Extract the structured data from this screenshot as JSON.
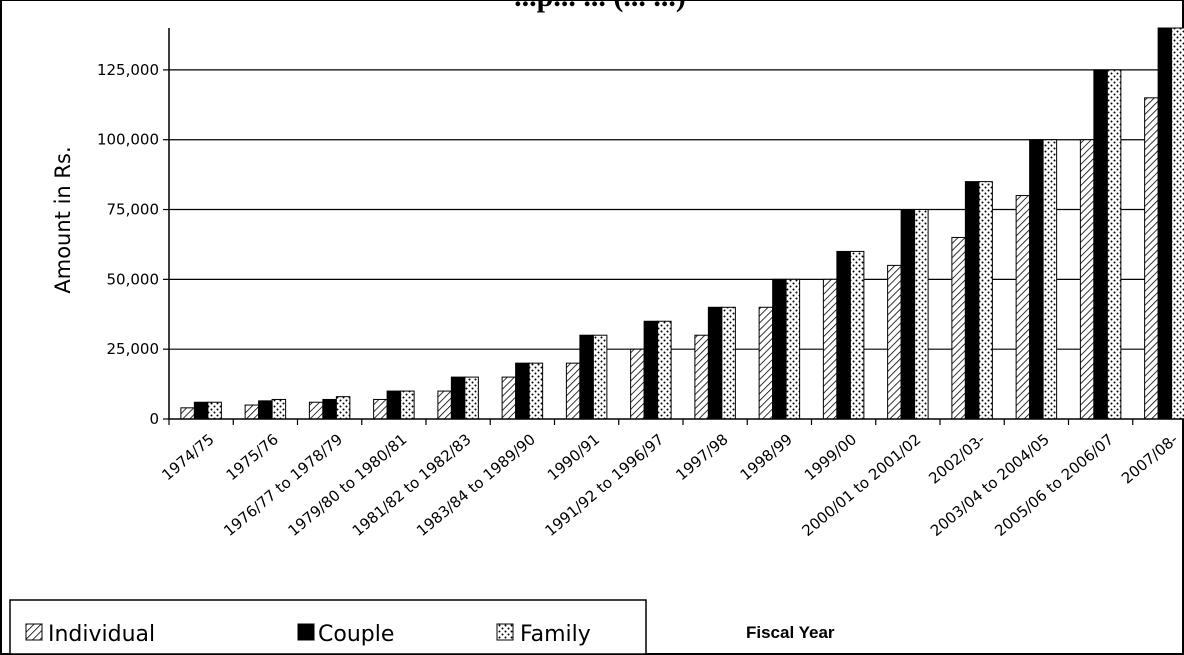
{
  "chart_data": {
    "type": "bar",
    "title": "...p... ... (... ...)",
    "xlabel": "Fiscal Year",
    "ylabel": "Amount in Rs.",
    "ylim": [
      0,
      140000
    ],
    "yticks": [
      0,
      25000,
      50000,
      75000,
      100000,
      125000
    ],
    "ytick_labels": [
      "0",
      "25,000",
      "50,000",
      "75,000",
      "100,000",
      "125,000"
    ],
    "grid": true,
    "legend_position": "bottom-left",
    "categories": [
      "1974/75",
      "1975/76",
      "1976/77 to 1978/79",
      "1979/80 to 1980/81",
      "1981/82 to 1982/83",
      "1983/84 to 1989/90",
      "1990/91",
      "1991/92 to 1996/97",
      "1997/98",
      "1998/99",
      "1999/00",
      "2000/01 to 2001/02",
      "2002/03-",
      "2003/04 to 2004/05",
      "2005/06 to 2006/07",
      "2007/08-"
    ],
    "series": [
      {
        "name": "Individual",
        "color": "#ffffff",
        "pattern": "diagonal-hatch",
        "values": [
          4000,
          5000,
          6000,
          7000,
          10000,
          15000,
          20000,
          25000,
          30000,
          40000,
          50000,
          55000,
          65000,
          80000,
          100000,
          115000
        ]
      },
      {
        "name": "Couple",
        "color": "#000000",
        "pattern": "solid",
        "values": [
          6000,
          6500,
          7000,
          10000,
          15000,
          20000,
          30000,
          35000,
          40000,
          50000,
          60000,
          75000,
          85000,
          100000,
          125000,
          140000
        ]
      },
      {
        "name": "Family",
        "color": "#ffffff",
        "pattern": "dotted",
        "values": [
          6000,
          7000,
          8000,
          10000,
          15000,
          20000,
          30000,
          35000,
          40000,
          50000,
          60000,
          75000,
          85000,
          100000,
          125000,
          140000
        ]
      }
    ]
  }
}
